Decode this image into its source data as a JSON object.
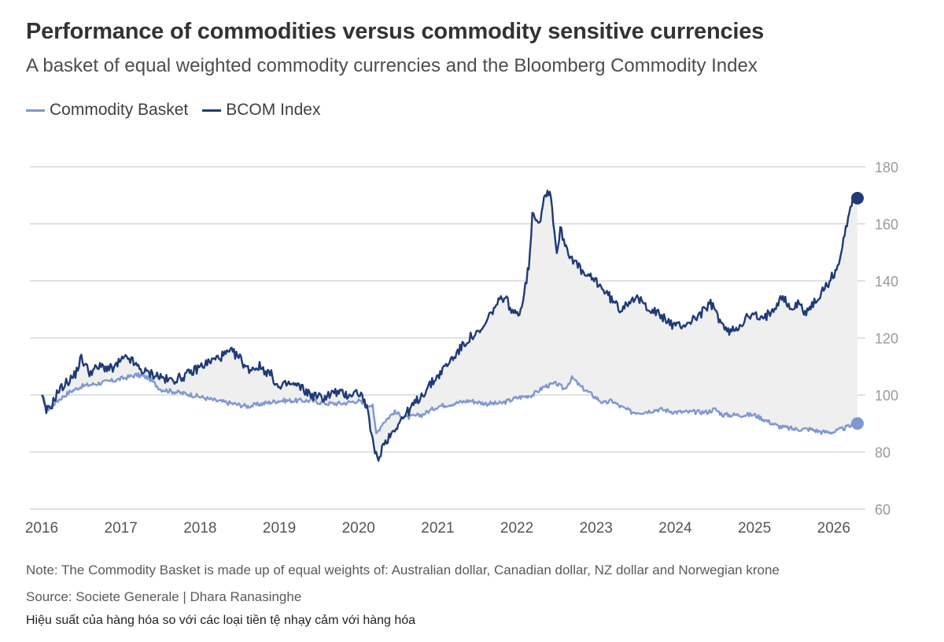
{
  "title": "Performance of commodities versus commodity sensitive currencies",
  "subtitle": "A basket of equal weighted commodity currencies and the Bloomberg Commodity Index",
  "note": "Note: The Commodity Basket is made up of equal weights of: Australian dollar, Canadian dollar, NZ dollar and Norwegian krone",
  "source": "Source: Societe Generale | Dhara Ranasinghe",
  "caption": "Hiệu suất của hàng hóa so với các loại tiền tệ nhạy cảm với hàng hóa",
  "colors": {
    "basket": "#7f97d3",
    "bcom": "#1e3a78",
    "fill": "#efefef",
    "grid": "#cfcfcf"
  },
  "chart_data": {
    "type": "line",
    "title": "Performance of commodities versus commodity sensitive currencies",
    "subtitle": "A basket of equal weighted commodity currencies and the Bloomberg Commodity Index",
    "xlabel": "",
    "ylabel": "",
    "xlim": [
      2016,
      2026.3
    ],
    "ylim": [
      60,
      180
    ],
    "yticks": [
      60,
      80,
      100,
      120,
      140,
      160,
      180
    ],
    "xticks": [
      "2016",
      "2017",
      "2018",
      "2019",
      "2020",
      "2021",
      "2022",
      "2023",
      "2024",
      "2025",
      "2026"
    ],
    "grid": true,
    "legend_position": "top-left",
    "shaded_between_series": true,
    "series": [
      {
        "name": "Commodity Basket",
        "color": "#7f97d3",
        "x": [
          2016.0,
          2016.08,
          2016.2,
          2016.35,
          2016.5,
          2016.7,
          2016.9,
          2017.05,
          2017.2,
          2017.35,
          2017.5,
          2017.7,
          2017.9,
          2018.05,
          2018.2,
          2018.4,
          2018.6,
          2018.8,
          2019.0,
          2019.2,
          2019.4,
          2019.6,
          2019.8,
          2020.0,
          2020.1,
          2020.18,
          2020.22,
          2020.3,
          2020.45,
          2020.6,
          2020.8,
          2021.0,
          2021.2,
          2021.4,
          2021.6,
          2021.8,
          2022.0,
          2022.2,
          2022.35,
          2022.5,
          2022.6,
          2022.7,
          2022.8,
          2022.9,
          2023.0,
          2023.1,
          2023.2,
          2023.3,
          2023.45,
          2023.6,
          2023.8,
          2024.0,
          2024.2,
          2024.4,
          2024.5,
          2024.6,
          2024.8,
          2025.0,
          2025.15,
          2025.3,
          2025.5,
          2025.7,
          2025.85,
          2026.0,
          2026.1,
          2026.2,
          2026.3
        ],
        "values": [
          100,
          95,
          98,
          101,
          103,
          104,
          105,
          106,
          107,
          106,
          102,
          101,
          100,
          99,
          98,
          97,
          96,
          97,
          98,
          98,
          98,
          97,
          97,
          98,
          96,
          97,
          86,
          90,
          94,
          92,
          93,
          96,
          97,
          98,
          97,
          97,
          99,
          100,
          103,
          104,
          102,
          106,
          103,
          101,
          99,
          97,
          98,
          96,
          94,
          94,
          95,
          94,
          94,
          94,
          95,
          93,
          93,
          93,
          91,
          89,
          88,
          88,
          87,
          87,
          88,
          89,
          90
        ]
      },
      {
        "name": "BCOM Index",
        "color": "#1e3a78",
        "x": [
          2016.0,
          2016.05,
          2016.12,
          2016.2,
          2016.3,
          2016.42,
          2016.5,
          2016.6,
          2016.75,
          2016.9,
          2017.0,
          2017.1,
          2017.2,
          2017.3,
          2017.45,
          2017.6,
          2017.75,
          2017.9,
          2018.0,
          2018.15,
          2018.3,
          2018.4,
          2018.5,
          2018.6,
          2018.75,
          2018.9,
          2019.0,
          2019.1,
          2019.25,
          2019.4,
          2019.55,
          2019.7,
          2019.85,
          2020.0,
          2020.08,
          2020.15,
          2020.2,
          2020.25,
          2020.3,
          2020.4,
          2020.5,
          2020.65,
          2020.8,
          2020.95,
          2021.1,
          2021.25,
          2021.4,
          2021.55,
          2021.7,
          2021.85,
          2021.95,
          2022.05,
          2022.15,
          2022.2,
          2022.28,
          2022.35,
          2022.42,
          2022.5,
          2022.55,
          2022.65,
          2022.75,
          2022.85,
          2023.0,
          2023.15,
          2023.3,
          2023.45,
          2023.55,
          2023.7,
          2023.85,
          2024.0,
          2024.15,
          2024.3,
          2024.45,
          2024.55,
          2024.65,
          2024.75,
          2024.9,
          2025.0,
          2025.1,
          2025.25,
          2025.35,
          2025.45,
          2025.55,
          2025.65,
          2025.75,
          2025.85,
          2025.95,
          2026.05,
          2026.1,
          2026.15,
          2026.2,
          2026.25,
          2026.3
        ],
        "values": [
          100,
          94,
          96,
          101,
          104,
          107,
          113,
          108,
          110,
          109,
          112,
          113,
          110,
          108,
          107,
          105,
          106,
          108,
          110,
          112,
          114,
          115,
          113,
          109,
          110,
          107,
          102,
          104,
          103,
          100,
          99,
          101,
          100,
          101,
          98,
          89,
          80,
          77,
          82,
          86,
          90,
          95,
          100,
          105,
          110,
          115,
          120,
          122,
          130,
          135,
          128,
          130,
          145,
          165,
          160,
          170,
          172,
          150,
          158,
          150,
          146,
          142,
          140,
          135,
          130,
          134,
          133,
          130,
          127,
          124,
          125,
          128,
          132,
          127,
          122,
          123,
          127,
          128,
          126,
          131,
          135,
          130,
          132,
          129,
          132,
          136,
          140,
          145,
          150,
          158,
          165,
          170,
          169
        ]
      }
    ]
  }
}
